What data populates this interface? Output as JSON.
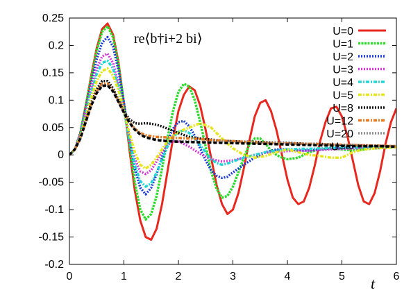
{
  "chart_data": {
    "type": "line",
    "xlabel": "t",
    "ylabel": "",
    "xlim": [
      0,
      6
    ],
    "ylim": [
      -0.2,
      0.25
    ],
    "xticks": [
      0,
      1,
      2,
      3,
      4,
      5,
      6
    ],
    "xtick_labels": [
      "0",
      "1",
      "2",
      "3",
      "4",
      "5",
      "6"
    ],
    "yticks": [
      -0.2,
      -0.15,
      -0.1,
      -0.05,
      0,
      0.05,
      0.1,
      0.15,
      0.2,
      0.25
    ],
    "ytick_labels": [
      "-0.2",
      "-0.15",
      "-0.1",
      "-0.05",
      "0",
      "0.05",
      "0.1",
      "0.15",
      "0.2",
      "0.25"
    ],
    "grid": false,
    "legend_position": "top-right",
    "annotation": {
      "prefix": "re",
      "formula": "⟨b†i+2 bi⟩"
    },
    "series": [
      {
        "name": "U=0",
        "color": "#e8281e",
        "style": "solid",
        "x": [
          0,
          0.1,
          0.2,
          0.3,
          0.4,
          0.5,
          0.6,
          0.7,
          0.8,
          0.9,
          1.0,
          1.1,
          1.2,
          1.3,
          1.4,
          1.5,
          1.6,
          1.7,
          1.8,
          1.9,
          2.0,
          2.1,
          2.2,
          2.3,
          2.4,
          2.5,
          2.6,
          2.7,
          2.8,
          2.9,
          3.0,
          3.1,
          3.2,
          3.3,
          3.4,
          3.5,
          3.6,
          3.7,
          3.8,
          3.9,
          4.0,
          4.1,
          4.2,
          4.3,
          4.4,
          4.5,
          4.6,
          4.7,
          4.8,
          4.9,
          5.0,
          5.1,
          5.2,
          5.3,
          5.4,
          5.5,
          5.6,
          5.7,
          5.8,
          5.9,
          6.0
        ],
        "y": [
          0,
          0.01,
          0.04,
          0.09,
          0.145,
          0.195,
          0.23,
          0.24,
          0.22,
          0.17,
          0.095,
          0.01,
          -0.065,
          -0.12,
          -0.15,
          -0.155,
          -0.135,
          -0.09,
          -0.03,
          0.03,
          0.08,
          0.11,
          0.125,
          0.118,
          0.09,
          0.045,
          -0.005,
          -0.055,
          -0.09,
          -0.108,
          -0.1,
          -0.07,
          -0.025,
          0.025,
          0.07,
          0.095,
          0.1,
          0.08,
          0.045,
          0.0,
          -0.045,
          -0.078,
          -0.09,
          -0.085,
          -0.06,
          -0.02,
          0.025,
          0.06,
          0.085,
          0.088,
          0.07,
          0.035,
          -0.01,
          -0.055,
          -0.085,
          -0.09,
          -0.07,
          -0.03,
          0.02,
          0.06,
          0.085
        ]
      },
      {
        "name": "U=1",
        "color": "#2ddc2d",
        "style": "dense",
        "x": [
          0,
          0.1,
          0.2,
          0.3,
          0.4,
          0.5,
          0.6,
          0.7,
          0.8,
          0.9,
          1.0,
          1.1,
          1.2,
          1.3,
          1.4,
          1.5,
          1.6,
          1.7,
          1.8,
          1.9,
          2.0,
          2.1,
          2.2,
          2.3,
          2.4,
          2.5,
          2.6,
          2.7,
          2.8,
          2.9,
          3.0,
          3.1,
          3.2,
          3.3,
          3.4,
          3.5,
          3.6,
          3.7,
          3.8,
          3.9,
          4.0,
          4.2,
          4.4,
          4.6,
          4.8,
          5.0,
          5.2,
          5.4,
          5.6,
          5.8,
          6.0
        ],
        "y": [
          0,
          0.01,
          0.04,
          0.09,
          0.14,
          0.19,
          0.225,
          0.235,
          0.215,
          0.165,
          0.095,
          0.02,
          -0.05,
          -0.1,
          -0.118,
          -0.108,
          -0.075,
          -0.025,
          0.03,
          0.08,
          0.115,
          0.13,
          0.125,
          0.1,
          0.06,
          0.015,
          -0.03,
          -0.062,
          -0.078,
          -0.075,
          -0.058,
          -0.032,
          -0.005,
          0.018,
          0.03,
          0.03,
          0.02,
          0.008,
          0.0,
          -0.005,
          -0.008,
          -0.005,
          0.005,
          0.01,
          0.012,
          0.01,
          0.008,
          0.01,
          0.012,
          0.013,
          0.015
        ]
      },
      {
        "name": "U=2",
        "color": "#1a3ad6",
        "style": "dotted",
        "x": [
          0,
          0.1,
          0.2,
          0.3,
          0.4,
          0.5,
          0.6,
          0.7,
          0.8,
          0.9,
          1.0,
          1.1,
          1.2,
          1.3,
          1.4,
          1.5,
          1.6,
          1.7,
          1.8,
          1.9,
          2.0,
          2.1,
          2.2,
          2.3,
          2.4,
          2.5,
          2.6,
          2.7,
          2.8,
          2.9,
          3.0,
          3.2,
          3.4,
          3.6,
          3.8,
          4.0,
          4.2,
          4.4,
          4.6,
          4.8,
          5.0,
          5.2,
          5.4,
          5.6,
          5.8,
          6.0
        ],
        "y": [
          0,
          0.01,
          0.04,
          0.085,
          0.13,
          0.175,
          0.205,
          0.215,
          0.198,
          0.155,
          0.095,
          0.03,
          -0.025,
          -0.06,
          -0.072,
          -0.06,
          -0.035,
          -0.005,
          0.025,
          0.048,
          0.06,
          0.062,
          0.052,
          0.035,
          0.012,
          -0.01,
          -0.028,
          -0.038,
          -0.042,
          -0.04,
          -0.032,
          -0.018,
          -0.005,
          0.005,
          0.01,
          0.01,
          0.008,
          0.008,
          0.01,
          0.012,
          0.012,
          0.013,
          0.014,
          0.015,
          0.015,
          0.015
        ]
      },
      {
        "name": "U=3",
        "color": "#d63ad6",
        "style": "dotted",
        "x": [
          0,
          0.1,
          0.2,
          0.3,
          0.4,
          0.5,
          0.6,
          0.7,
          0.8,
          0.9,
          1.0,
          1.1,
          1.2,
          1.3,
          1.4,
          1.5,
          1.6,
          1.7,
          1.8,
          1.9,
          2.0,
          2.2,
          2.4,
          2.6,
          2.8,
          3.0,
          3.2,
          3.4,
          3.6,
          3.8,
          4.0,
          4.4,
          4.8,
          5.2,
          5.6,
          6.0
        ],
        "y": [
          0,
          0.01,
          0.038,
          0.08,
          0.122,
          0.158,
          0.18,
          0.185,
          0.168,
          0.13,
          0.08,
          0.03,
          -0.008,
          -0.03,
          -0.035,
          -0.028,
          -0.012,
          0.005,
          0.018,
          0.025,
          0.025,
          0.015,
          0.002,
          -0.008,
          -0.012,
          -0.01,
          -0.005,
          0.0,
          0.004,
          0.006,
          0.007,
          0.008,
          0.01,
          0.012,
          0.013,
          0.014
        ]
      },
      {
        "name": "U=4",
        "color": "#22d6d6",
        "style": "dashdot",
        "x": [
          0,
          0.1,
          0.2,
          0.3,
          0.4,
          0.5,
          0.6,
          0.7,
          0.8,
          0.9,
          1.0,
          1.1,
          1.2,
          1.3,
          1.4,
          1.5,
          1.6,
          1.7,
          1.8,
          1.9,
          2.0,
          2.1,
          2.2,
          2.3,
          2.4,
          2.5,
          2.6,
          2.7,
          2.8,
          2.9,
          3.0,
          3.2,
          3.4,
          3.6,
          3.8,
          4.0,
          4.2,
          4.4,
          4.6,
          4.8,
          5.0,
          5.2,
          5.4,
          5.6,
          5.8,
          6.0
        ],
        "y": [
          0,
          0.01,
          0.035,
          0.075,
          0.115,
          0.148,
          0.168,
          0.172,
          0.158,
          0.125,
          0.08,
          0.028,
          -0.018,
          -0.048,
          -0.058,
          -0.052,
          -0.032,
          -0.008,
          0.015,
          0.032,
          0.042,
          0.045,
          0.04,
          0.03,
          0.018,
          0.005,
          -0.008,
          -0.015,
          -0.018,
          -0.016,
          -0.012,
          -0.005,
          0.0,
          0.005,
          0.008,
          0.01,
          0.011,
          0.011,
          0.012,
          0.013,
          0.013,
          0.014,
          0.014,
          0.015,
          0.015,
          0.015
        ]
      },
      {
        "name": "U=5",
        "color": "#e6e61a",
        "style": "dashdot",
        "x": [
          0,
          0.1,
          0.2,
          0.3,
          0.4,
          0.5,
          0.6,
          0.7,
          0.8,
          0.9,
          1.0,
          1.1,
          1.2,
          1.3,
          1.4,
          1.5,
          1.6,
          1.7,
          1.8,
          1.9,
          2.0,
          2.2,
          2.4,
          2.6,
          2.8,
          3.0,
          3.2,
          3.4,
          3.6,
          3.8,
          4.0,
          4.2,
          4.4,
          4.6,
          4.8,
          5.0,
          5.2,
          5.4,
          5.6,
          5.8,
          6.0
        ],
        "y": [
          0,
          0.01,
          0.033,
          0.068,
          0.105,
          0.135,
          0.153,
          0.158,
          0.145,
          0.118,
          0.08,
          0.04,
          0.005,
          -0.018,
          -0.025,
          -0.018,
          -0.005,
          0.01,
          0.025,
          0.035,
          0.042,
          0.05,
          0.058,
          0.05,
          0.03,
          0.012,
          0.0,
          -0.005,
          -0.002,
          0.005,
          0.01,
          0.005,
          0.0,
          -0.002,
          -0.005,
          -0.005,
          0.005,
          0.01,
          0.012,
          0.013,
          0.014
        ]
      },
      {
        "name": "U=8",
        "color": "#111111",
        "style": "dotted",
        "x": [
          0,
          0.1,
          0.2,
          0.3,
          0.4,
          0.5,
          0.6,
          0.7,
          0.8,
          0.9,
          1.0,
          1.1,
          1.2,
          1.3,
          1.4,
          1.5,
          1.6,
          1.7,
          1.8,
          1.9,
          2.0,
          2.2,
          2.4,
          2.6,
          2.8,
          3.0,
          3.2,
          3.4,
          3.6,
          3.8,
          4.0,
          4.2,
          4.4,
          4.6,
          4.8,
          5.0,
          5.2,
          5.4,
          5.6,
          5.8,
          6.0
        ],
        "y": [
          0,
          0.01,
          0.03,
          0.062,
          0.095,
          0.12,
          0.135,
          0.135,
          0.122,
          0.1,
          0.08,
          0.065,
          0.058,
          0.057,
          0.058,
          0.057,
          0.055,
          0.052,
          0.048,
          0.044,
          0.04,
          0.033,
          0.03,
          0.028,
          0.026,
          0.025,
          0.024,
          0.024,
          0.023,
          0.022,
          0.022,
          0.021,
          0.02,
          0.02,
          0.019,
          0.018,
          0.018,
          0.017,
          0.017,
          0.016,
          0.016
        ]
      },
      {
        "name": "U=12",
        "color": "#e8781e",
        "style": "dashdot",
        "x": [
          0,
          0.1,
          0.2,
          0.3,
          0.4,
          0.5,
          0.6,
          0.7,
          0.8,
          0.9,
          1.0,
          1.1,
          1.2,
          1.3,
          1.4,
          1.5,
          1.6,
          1.8,
          2.0,
          2.2,
          2.4,
          2.6,
          2.8,
          3.0,
          3.2,
          3.4,
          3.6,
          3.8,
          4.0,
          4.4,
          4.8,
          5.2,
          5.6,
          6.0
        ],
        "y": [
          0,
          0.01,
          0.03,
          0.06,
          0.092,
          0.116,
          0.13,
          0.13,
          0.118,
          0.098,
          0.078,
          0.06,
          0.048,
          0.04,
          0.036,
          0.034,
          0.033,
          0.032,
          0.031,
          0.03,
          0.029,
          0.027,
          0.026,
          0.025,
          0.024,
          0.023,
          0.022,
          0.021,
          0.021,
          0.02,
          0.019,
          0.018,
          0.017,
          0.016
        ]
      },
      {
        "name": "U=20",
        "color": "#8a8a8a",
        "style": "dotted",
        "x": [
          0,
          0.1,
          0.2,
          0.3,
          0.4,
          0.5,
          0.6,
          0.7,
          0.8,
          0.9,
          1.0,
          1.1,
          1.2,
          1.3,
          1.4,
          1.6,
          1.8,
          2.0,
          2.4,
          2.8,
          3.2,
          3.6,
          4.0,
          4.4,
          4.8,
          5.2,
          5.6,
          6.0
        ],
        "y": [
          0,
          0.01,
          0.03,
          0.06,
          0.09,
          0.114,
          0.127,
          0.128,
          0.117,
          0.098,
          0.078,
          0.06,
          0.047,
          0.038,
          0.033,
          0.028,
          0.026,
          0.025,
          0.024,
          0.023,
          0.022,
          0.021,
          0.02,
          0.019,
          0.018,
          0.017,
          0.016,
          0.016
        ]
      },
      {
        "name": "U=∞",
        "color": "#000000",
        "style": "dashed",
        "x": [
          0,
          0.1,
          0.2,
          0.3,
          0.4,
          0.5,
          0.6,
          0.7,
          0.8,
          0.9,
          1.0,
          1.1,
          1.2,
          1.3,
          1.4,
          1.6,
          1.8,
          2.0,
          2.4,
          2.8,
          3.2,
          3.6,
          4.0,
          4.4,
          4.8,
          5.2,
          5.6,
          6.0
        ],
        "y": [
          0,
          0.01,
          0.03,
          0.06,
          0.09,
          0.113,
          0.126,
          0.127,
          0.116,
          0.097,
          0.077,
          0.059,
          0.046,
          0.037,
          0.032,
          0.027,
          0.025,
          0.024,
          0.023,
          0.022,
          0.021,
          0.02,
          0.019,
          0.018,
          0.017,
          0.016,
          0.016,
          0.015
        ]
      }
    ]
  }
}
